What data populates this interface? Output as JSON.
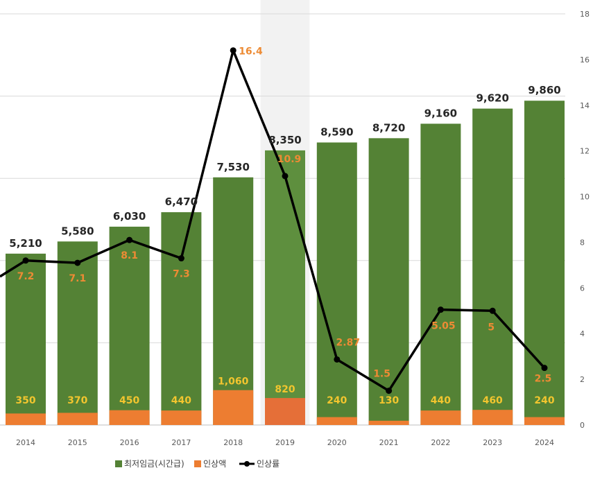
{
  "chart_data": {
    "type": "bar",
    "categories": [
      "2014",
      "2015",
      "2016",
      "2017",
      "2018",
      "2019",
      "2020",
      "2021",
      "2022",
      "2023",
      "2024"
    ],
    "series": [
      {
        "name": "최저임금(시간급)",
        "type": "bar",
        "axis": "left",
        "color": "#548235",
        "values": [
          5210,
          5580,
          6030,
          6470,
          7530,
          8350,
          8590,
          8720,
          9160,
          9620,
          9860
        ],
        "labels": [
          "5,210",
          "5,580",
          "6,030",
          "6,470",
          "7,530",
          "8,350",
          "8,590",
          "8,720",
          "9,160",
          "9,620",
          "9,860"
        ]
      },
      {
        "name": "인상액",
        "type": "bar",
        "axis": "left",
        "color": "#ed7d31",
        "values": [
          350,
          370,
          450,
          440,
          1060,
          820,
          240,
          130,
          440,
          460,
          240
        ],
        "labels": [
          "350",
          "370",
          "450",
          "440",
          "1,060",
          "820",
          "240",
          "130",
          "440",
          "460",
          "240"
        ]
      },
      {
        "name": "인상률",
        "type": "line",
        "axis": "right",
        "color": "#000000",
        "values": [
          7.2,
          7.1,
          8.1,
          7.3,
          16.4,
          10.9,
          2.87,
          1.5,
          5.05,
          5,
          2.5
        ],
        "labels": [
          "7.2",
          "7.1",
          "8.1",
          "7.3",
          "16.4",
          "10.9",
          "2.87",
          "1.5",
          "5.05",
          "5",
          "2.5"
        ],
        "start_value": 6.5
      }
    ],
    "y_left": {
      "range": [
        0,
        12500
      ],
      "grid": true
    },
    "y_right": {
      "range": [
        0,
        18
      ],
      "ticks": [
        "0",
        "2",
        "4",
        "6",
        "8",
        "10",
        "12",
        "14",
        "16",
        "18"
      ]
    },
    "highlight_category": "2019",
    "legend": {
      "position": "bottom"
    },
    "colors": {
      "wage_bar": "#548235",
      "wage_bar_highlight": "#5e8f3e",
      "increase_bar": "#ed7d31",
      "increase_highlight": "#e56f38",
      "rate_line": "#000000",
      "inc_label": "#f2c52e",
      "rate_label": "#ed8b34",
      "highlight_band": "#f2f2f2"
    }
  }
}
